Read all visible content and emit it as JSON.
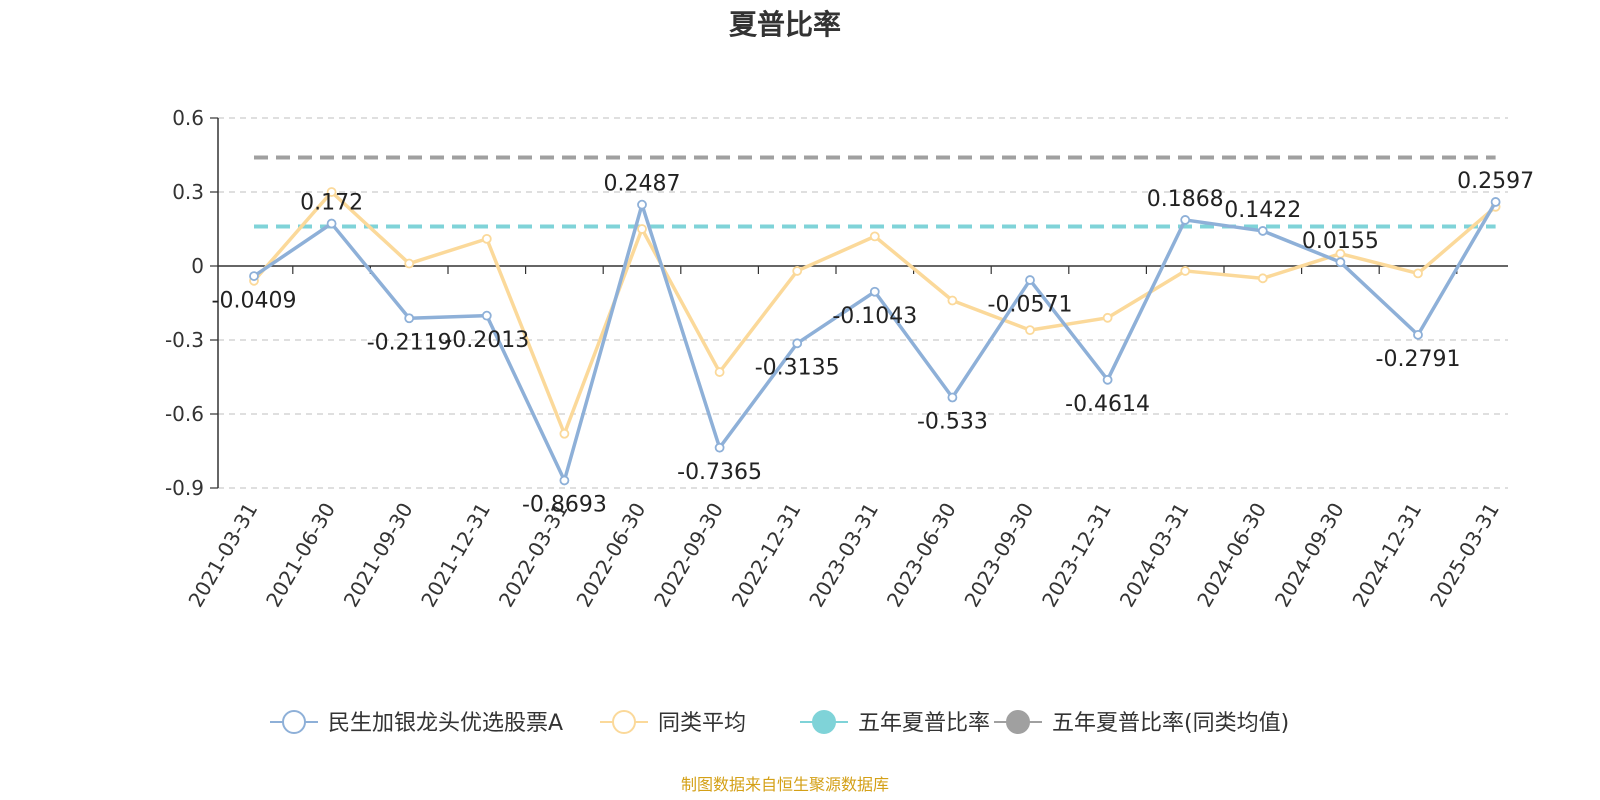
{
  "chart_data": {
    "type": "line",
    "title": "夏普比率",
    "categories": [
      "2021-03-31",
      "2021-06-30",
      "2021-09-30",
      "2021-12-31",
      "2022-03-31",
      "2022-06-30",
      "2022-09-30",
      "2022-12-31",
      "2023-03-31",
      "2023-06-30",
      "2023-09-30",
      "2023-12-31",
      "2024-03-31",
      "2024-06-30",
      "2024-09-30",
      "2024-12-31",
      "2025-03-31"
    ],
    "ylim": [
      -0.9,
      0.6
    ],
    "yticks": [
      0.6,
      0.3,
      0,
      -0.3,
      -0.6,
      -0.9
    ],
    "ytick_labels": [
      "0.6",
      "0.3",
      "0",
      "-0.3",
      "-0.6",
      "-0.9"
    ],
    "grid": true,
    "series": [
      {
        "name": "民生加银龙头优选股票A",
        "color": "#8eb0d8",
        "values": [
          -0.0409,
          0.172,
          -0.2119,
          -0.2013,
          -0.8693,
          0.2487,
          -0.7365,
          -0.3135,
          -0.1043,
          -0.533,
          -0.0571,
          -0.4614,
          0.1868,
          0.1422,
          0.0155,
          -0.2791,
          0.2597
        ],
        "labels": [
          "-0.0409",
          "0.172",
          "-0.2119",
          "-0.2013",
          "-0.8693",
          "0.2487",
          "-0.7365",
          "-0.3135",
          "-0.1043",
          "-0.533",
          "-0.0571",
          "-0.4614",
          "0.1868",
          "0.1422",
          "0.0155",
          "-0.2791",
          "0.2597"
        ]
      },
      {
        "name": "同类平均",
        "color": "#fbd99a",
        "values": [
          -0.06,
          0.3,
          0.01,
          0.11,
          -0.68,
          0.15,
          -0.43,
          -0.02,
          0.12,
          -0.14,
          -0.26,
          -0.21,
          -0.02,
          -0.05,
          0.05,
          -0.03,
          0.24
        ]
      },
      {
        "name": "五年夏普比率",
        "color": "#7fd3d8",
        "constant": 0.16
      },
      {
        "name": "五年夏普比率(同类均值)",
        "color": "#a0a0a0",
        "constant": 0.44
      }
    ],
    "legend_position": "bottom-center",
    "source": "制图数据来自恒生聚源数据库",
    "source_color": "#d4a017"
  }
}
